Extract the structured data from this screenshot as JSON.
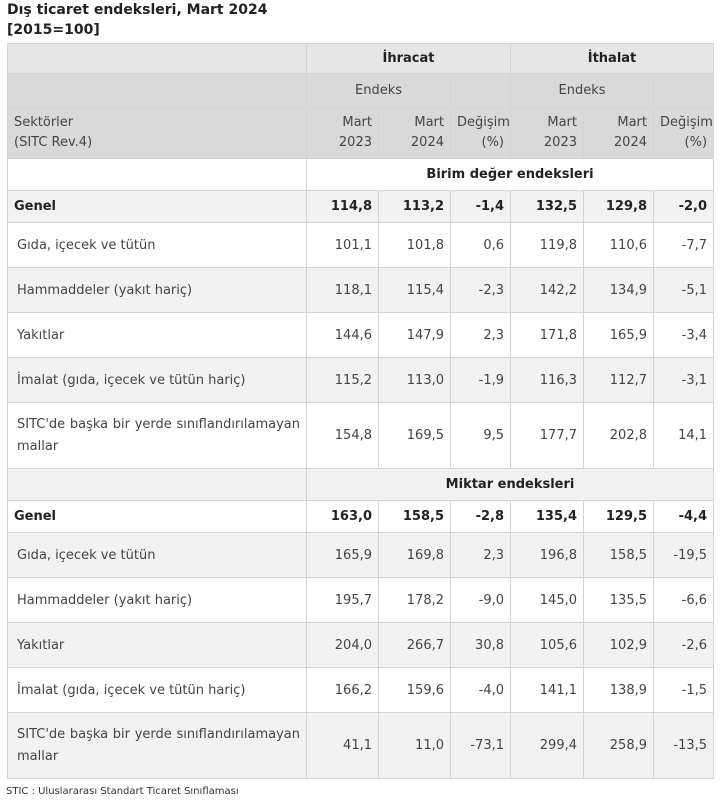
{
  "title": "Dış ticaret endeksleri, Mart 2024",
  "subtitle": "[2015=100]",
  "header": {
    "ihracat": "İhracat",
    "ithalat": "İthalat",
    "endeks": "Endeks",
    "sektorler_line1": "Sektörler",
    "sektorler_line2": "(SITC Rev.4)",
    "mart_line1": "Mart",
    "year_2023": "2023",
    "year_2024": "2024",
    "degisim_line1": "Değişim",
    "degisim_line2": "(%)"
  },
  "sections": [
    {
      "title": "Birim değer endeksleri",
      "genel": {
        "label": "Genel",
        "values": [
          "114,8",
          "113,2",
          "-1,4",
          "132,5",
          "129,8",
          "-2,0"
        ]
      },
      "rows": [
        {
          "label": "Gıda, içecek ve tütün",
          "values": [
            "101,1",
            "101,8",
            "0,6",
            "119,8",
            "110,6",
            "-7,7"
          ]
        },
        {
          "label": "Hammaddeler (yakıt hariç)",
          "values": [
            "118,1",
            "115,4",
            "-2,3",
            "142,2",
            "134,9",
            "-5,1"
          ]
        },
        {
          "label": "Yakıtlar",
          "values": [
            "144,6",
            "147,9",
            "2,3",
            "171,8",
            "165,9",
            "-3,4"
          ]
        },
        {
          "label": "İmalat (gıda, içecek ve tütün hariç)",
          "values": [
            "115,2",
            "113,0",
            "-1,9",
            "116,3",
            "112,7",
            "-3,1"
          ]
        },
        {
          "label": "SITC'de başka bir yerde sınıflandırılamayan mallar",
          "values": [
            "154,8",
            "169,5",
            "9,5",
            "177,7",
            "202,8",
            "14,1"
          ]
        }
      ]
    },
    {
      "title": "Miktar endeksleri",
      "genel": {
        "label": "Genel",
        "values": [
          "163,0",
          "158,5",
          "-2,8",
          "135,4",
          "129,5",
          "-4,4"
        ]
      },
      "rows": [
        {
          "label": "Gıda, içecek ve tütün",
          "values": [
            "165,9",
            "169,8",
            "2,3",
            "196,8",
            "158,5",
            "-19,5"
          ]
        },
        {
          "label": "Hammaddeler (yakıt hariç)",
          "values": [
            "195,7",
            "178,2",
            "-9,0",
            "145,0",
            "135,5",
            "-6,6"
          ]
        },
        {
          "label": "Yakıtlar",
          "values": [
            "204,0",
            "266,7",
            "30,8",
            "105,6",
            "102,9",
            "-2,6"
          ]
        },
        {
          "label": "İmalat (gıda, içecek ve tütün hariç)",
          "values": [
            "166,2",
            "159,6",
            "-4,0",
            "141,1",
            "138,9",
            "-1,5"
          ]
        },
        {
          "label": "SITC'de başka bir yerde sınıflandırılamayan mallar",
          "values": [
            "41,1",
            "11,0",
            "-73,1",
            "299,4",
            "258,9",
            "-13,5"
          ]
        }
      ]
    }
  ],
  "footnote": "STIC : Uluslararası Standart Ticaret Sınıflaması"
}
